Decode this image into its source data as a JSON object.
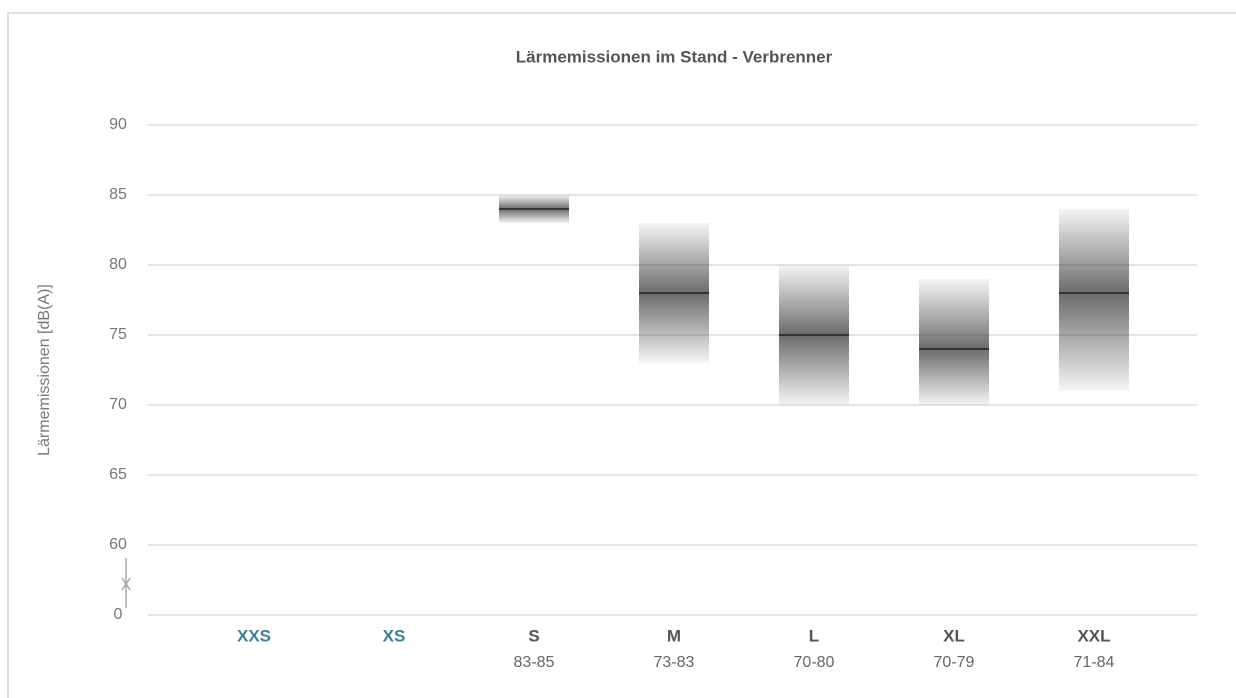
{
  "chart_data": {
    "type": "range",
    "title": "Lärmemissionen im Stand - Verbrenner",
    "y_label": "Lärmemissionen [dB(A)]",
    "categories": [
      "XXS",
      "XS",
      "S",
      "M",
      "L",
      "XL",
      "XXL"
    ],
    "label_colors": [
      "#3f7f93",
      "#3f7f93",
      "#555555",
      "#555555",
      "#555555",
      "#555555",
      "#555555"
    ],
    "range_labels": [
      null,
      null,
      "83-85",
      "73-83",
      "70-80",
      "70-79",
      "71-84"
    ],
    "low": [
      null,
      null,
      83,
      73,
      70,
      70,
      71
    ],
    "high": [
      null,
      null,
      85,
      83,
      80,
      79,
      84
    ],
    "median": [
      null,
      null,
      84,
      78,
      75,
      74,
      78
    ],
    "color": "#3a3a3a",
    "ylim": [
      0,
      90
    ],
    "yticks": [
      0,
      60,
      65,
      70,
      75,
      80,
      85,
      90
    ],
    "axis_break": true,
    "grid": true
  }
}
